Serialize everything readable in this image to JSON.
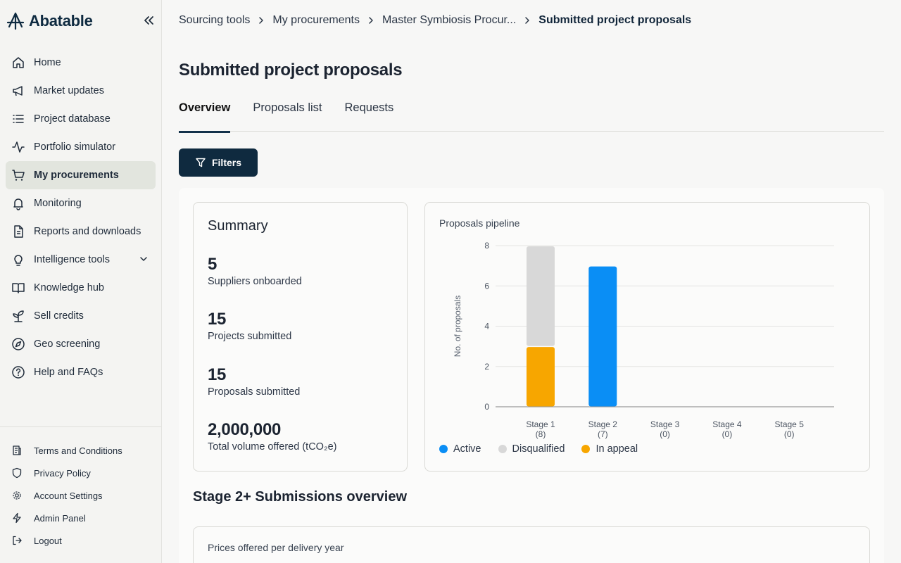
{
  "app": {
    "brand": "Abatable"
  },
  "sidebar": {
    "items": [
      {
        "label": "Home",
        "icon": "home-icon"
      },
      {
        "label": "Market updates",
        "icon": "megaphone-icon"
      },
      {
        "label": "Project database",
        "icon": "list-icon"
      },
      {
        "label": "Portfolio simulator",
        "icon": "activity-icon"
      },
      {
        "label": "My procurements",
        "icon": "cart-icon",
        "active": true
      },
      {
        "label": "Monitoring",
        "icon": "bell-icon"
      },
      {
        "label": "Reports and downloads",
        "icon": "document-icon"
      },
      {
        "label": "Intelligence tools",
        "icon": "lightbulb-icon",
        "expandable": true
      },
      {
        "label": "Knowledge hub",
        "icon": "book-icon"
      },
      {
        "label": "Sell credits",
        "icon": "sprout-icon"
      },
      {
        "label": "Geo screening",
        "icon": "compass-icon"
      },
      {
        "label": "Help and FAQs",
        "icon": "help-circle-icon"
      }
    ],
    "bottom_items": [
      {
        "label": "Terms and Conditions",
        "icon": "terms-icon"
      },
      {
        "label": "Privacy Policy",
        "icon": "shield-icon"
      },
      {
        "label": "Account Settings",
        "icon": "gear-icon"
      },
      {
        "label": "Admin Panel",
        "icon": "bolt-icon"
      },
      {
        "label": "Logout",
        "icon": "logout-icon"
      }
    ]
  },
  "breadcrumb": {
    "items": [
      "Sourcing tools",
      "My procurements",
      "Master Symbiosis Procur...",
      "Submitted project proposals"
    ]
  },
  "page": {
    "title": "Submitted project proposals",
    "tabs": [
      "Overview",
      "Proposals list",
      "Requests"
    ],
    "active_tab": "Overview",
    "filters_label": "Filters"
  },
  "summary": {
    "title": "Summary",
    "stats": [
      {
        "value": "5",
        "label": "Suppliers onboarded"
      },
      {
        "value": "15",
        "label": "Projects submitted"
      },
      {
        "value": "15",
        "label": "Proposals submitted"
      },
      {
        "value": "2,000,000",
        "label": "Total volume offered (tCO₂e)"
      }
    ]
  },
  "colors": {
    "active": "#0a8ef5",
    "disqualified": "#d8d8d8",
    "in_appeal": "#f7a600",
    "brand_dark": "#0f2a3f"
  },
  "chart_data": {
    "type": "bar",
    "title": "Proposals pipeline",
    "ylabel": "No. of proposals",
    "xlabel": "",
    "ylim": [
      0,
      8
    ],
    "yticks": [
      0,
      2,
      4,
      6,
      8
    ],
    "categories": [
      "Stage 1",
      "Stage 2",
      "Stage 3",
      "Stage 4",
      "Stage 5"
    ],
    "category_counts": [
      "(8)",
      "(7)",
      "(0)",
      "(0)",
      "(0)"
    ],
    "stacked": true,
    "series": [
      {
        "name": "Active",
        "color": "#0a8ef5",
        "values": [
          0,
          7,
          0,
          0,
          0
        ]
      },
      {
        "name": "In appeal",
        "color": "#f7a600",
        "values": [
          3,
          0,
          0,
          0,
          0
        ]
      },
      {
        "name": "Disqualified",
        "color": "#d8d8d8",
        "values": [
          5,
          0,
          0,
          0,
          0
        ]
      }
    ],
    "legend": [
      "Active",
      "Disqualified",
      "In appeal"
    ]
  },
  "submissions": {
    "title": "Stage 2+ Submissions overview",
    "prices_card_title": "Prices offered per delivery year"
  }
}
